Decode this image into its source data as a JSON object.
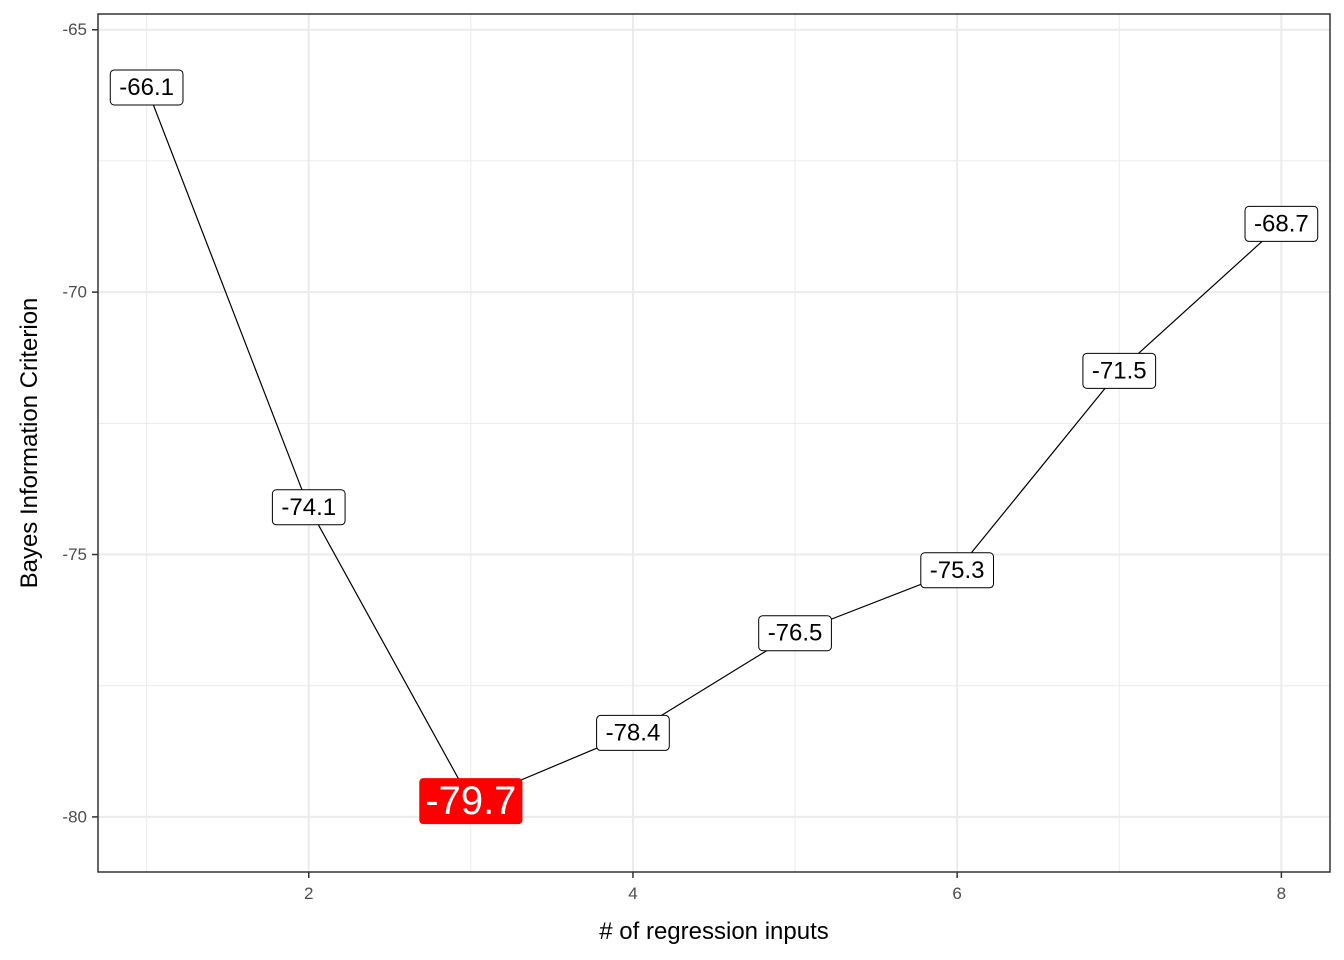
{
  "chart_data": {
    "type": "line",
    "title": "",
    "xlabel": "# of regression inputs",
    "ylabel": "Bayes Information Criterion",
    "x": [
      1,
      2,
      3,
      4,
      5,
      6,
      7,
      8
    ],
    "values": [
      -66.1,
      -74.1,
      -79.7,
      -78.4,
      -76.5,
      -75.3,
      -71.5,
      -68.7
    ],
    "labels": [
      "-66.1",
      "-74.1",
      "-79.7",
      "-78.4",
      "-76.5",
      "-75.3",
      "-71.5",
      "-68.7"
    ],
    "xlim": [
      0.7,
      8.3
    ],
    "ylim": [
      -81.05,
      -64.7
    ],
    "x_ticks": [
      2,
      4,
      6,
      8
    ],
    "x_tick_labels": [
      "2",
      "4",
      "6",
      "8"
    ],
    "y_ticks": [
      -65,
      -70,
      -75,
      -80
    ],
    "y_tick_labels": [
      "-65",
      "-70",
      "-75",
      "-80"
    ],
    "highlight_index": 2,
    "grid": true,
    "legend": "none",
    "colors": {
      "line": "#000000",
      "label_fill": "#ffffff",
      "label_border": "#000000",
      "highlight_fill": "#ff0000",
      "highlight_text": "#ffffff",
      "grid": "#ebebeb",
      "panel_border": "#333333"
    }
  }
}
